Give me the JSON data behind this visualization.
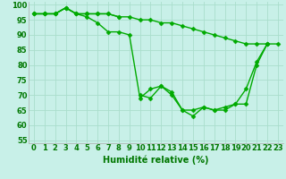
{
  "x": [
    0,
    1,
    2,
    3,
    4,
    5,
    6,
    7,
    8,
    9,
    10,
    11,
    12,
    13,
    14,
    15,
    16,
    17,
    18,
    19,
    20,
    21,
    22,
    23
  ],
  "series1": [
    97,
    97,
    97,
    99,
    97,
    97,
    97,
    97,
    96,
    96,
    95,
    95,
    94,
    94,
    93,
    92,
    91,
    90,
    89,
    88,
    87,
    87,
    87,
    87
  ],
  "series2": [
    97,
    97,
    97,
    99,
    97,
    97,
    97,
    97,
    96,
    null,
    70,
    69,
    73,
    71,
    65,
    65,
    66,
    65,
    65,
    67,
    67,
    80,
    87,
    null
  ],
  "series3": [
    97,
    97,
    97,
    99,
    97,
    96,
    94,
    91,
    91,
    90,
    69,
    72,
    73,
    70,
    65,
    63,
    66,
    65,
    66,
    67,
    72,
    81,
    87,
    null
  ],
  "bg_color": "#c8f0e8",
  "grid_color": "#aaddcc",
  "line_color": "#00aa00",
  "marker_color": "#00aa00",
  "xlabel": "Humidité relative (%)",
  "ylabel_ticks": [
    55,
    60,
    65,
    70,
    75,
    80,
    85,
    90,
    95,
    100
  ],
  "ylim": [
    54,
    101
  ],
  "xlim": [
    -0.5,
    23.5
  ],
  "xlabel_fontsize": 7,
  "tick_fontsize": 6,
  "line_width": 1.0,
  "marker_size": 2.5
}
